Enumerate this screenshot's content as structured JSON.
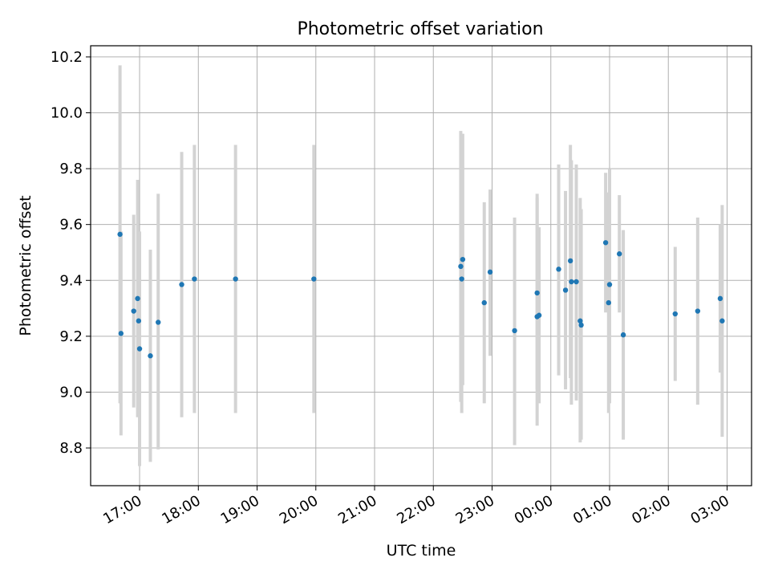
{
  "chart_data": {
    "type": "scatter",
    "title": "Photometric offset variation",
    "xlabel": "UTC time",
    "ylabel": "Photometric offset",
    "x_axis_kind": "time",
    "xlim": [
      "16:10",
      "03:25 (+1 day)"
    ],
    "ylim": [
      8.665,
      10.24
    ],
    "grid": true,
    "x_ticks": [
      "17:00",
      "18:00",
      "19:00",
      "20:00",
      "21:00",
      "22:00",
      "23:00",
      "00:00",
      "01:00",
      "02:00",
      "03:00"
    ],
    "y_ticks": [
      "8.8",
      "9.0",
      "9.2",
      "9.4",
      "9.6",
      "9.8",
      "10.0",
      "10.2"
    ],
    "point_color": "#1f77b4",
    "errorbar_color": "#d3d3d3",
    "points": [
      {
        "x": "16:40",
        "y": 9.565,
        "ylow": 8.96,
        "yhigh": 10.17
      },
      {
        "x": "16:41",
        "y": 9.21,
        "ylow": 8.845,
        "yhigh": 9.575
      },
      {
        "x": "16:54",
        "y": 9.29,
        "ylow": 8.945,
        "yhigh": 9.635
      },
      {
        "x": "16:58",
        "y": 9.335,
        "ylow": 8.91,
        "yhigh": 9.76
      },
      {
        "x": "16:59",
        "y": 9.255,
        "ylow": 8.955,
        "yhigh": 9.555
      },
      {
        "x": "17:00",
        "y": 9.155,
        "ylow": 8.735,
        "yhigh": 9.575
      },
      {
        "x": "17:11",
        "y": 9.13,
        "ylow": 8.75,
        "yhigh": 9.51
      },
      {
        "x": "17:19",
        "y": 9.25,
        "ylow": 8.795,
        "yhigh": 9.71
      },
      {
        "x": "17:43",
        "y": 9.385,
        "ylow": 8.91,
        "yhigh": 9.86
      },
      {
        "x": "17:56",
        "y": 9.405,
        "ylow": 8.925,
        "yhigh": 9.885
      },
      {
        "x": "18:38",
        "y": 9.405,
        "ylow": 8.925,
        "yhigh": 9.885
      },
      {
        "x": "19:58",
        "y": 9.405,
        "ylow": 8.925,
        "yhigh": 9.885
      },
      {
        "x": "22:28",
        "y": 9.45,
        "ylow": 8.965,
        "yhigh": 9.935
      },
      {
        "x": "22:29",
        "y": 9.405,
        "ylow": 8.925,
        "yhigh": 9.885
      },
      {
        "x": "22:30",
        "y": 9.475,
        "ylow": 9.025,
        "yhigh": 9.925
      },
      {
        "x": "22:52",
        "y": 9.32,
        "ylow": 8.96,
        "yhigh": 9.68
      },
      {
        "x": "22:58",
        "y": 9.43,
        "ylow": 9.13,
        "yhigh": 9.725
      },
      {
        "x": "23:23",
        "y": 9.22,
        "ylow": 8.81,
        "yhigh": 9.625
      },
      {
        "x": "23:46",
        "y": 9.27,
        "ylow": 8.88,
        "yhigh": 9.71
      },
      {
        "x": "23:46",
        "y": 9.355,
        "ylow": 9.01,
        "yhigh": 9.695
      },
      {
        "x": "23:48",
        "y": 9.275,
        "ylow": 8.96,
        "yhigh": 9.59
      },
      {
        "x": "00:08",
        "y": 9.44,
        "ylow": 9.06,
        "yhigh": 9.815
      },
      {
        "x": "00:15",
        "y": 9.365,
        "ylow": 9.01,
        "yhigh": 9.72
      },
      {
        "x": "00:20",
        "y": 9.47,
        "ylow": 9.05,
        "yhigh": 9.885
      },
      {
        "x": "00:21",
        "y": 9.395,
        "ylow": 8.955,
        "yhigh": 9.83
      },
      {
        "x": "00:26",
        "y": 9.395,
        "ylow": 8.97,
        "yhigh": 9.815
      },
      {
        "x": "00:30",
        "y": 9.255,
        "ylow": 8.82,
        "yhigh": 9.695
      },
      {
        "x": "00:31",
        "y": 9.24,
        "ylow": 8.83,
        "yhigh": 9.655
      },
      {
        "x": "00:56",
        "y": 9.535,
        "ylow": 9.285,
        "yhigh": 9.785
      },
      {
        "x": "00:59",
        "y": 9.32,
        "ylow": 8.925,
        "yhigh": 9.715
      },
      {
        "x": "01:00",
        "y": 9.385,
        "ylow": 8.96,
        "yhigh": 9.8
      },
      {
        "x": "01:10",
        "y": 9.495,
        "ylow": 9.285,
        "yhigh": 9.705
      },
      {
        "x": "01:14",
        "y": 9.205,
        "ylow": 8.83,
        "yhigh": 9.58
      },
      {
        "x": "02:07",
        "y": 9.28,
        "ylow": 9.04,
        "yhigh": 9.52
      },
      {
        "x": "02:30",
        "y": 9.29,
        "ylow": 8.955,
        "yhigh": 9.625
      },
      {
        "x": "02:53",
        "y": 9.335,
        "ylow": 9.07,
        "yhigh": 9.6
      },
      {
        "x": "02:55",
        "y": 9.255,
        "ylow": 8.84,
        "yhigh": 9.67
      }
    ]
  }
}
